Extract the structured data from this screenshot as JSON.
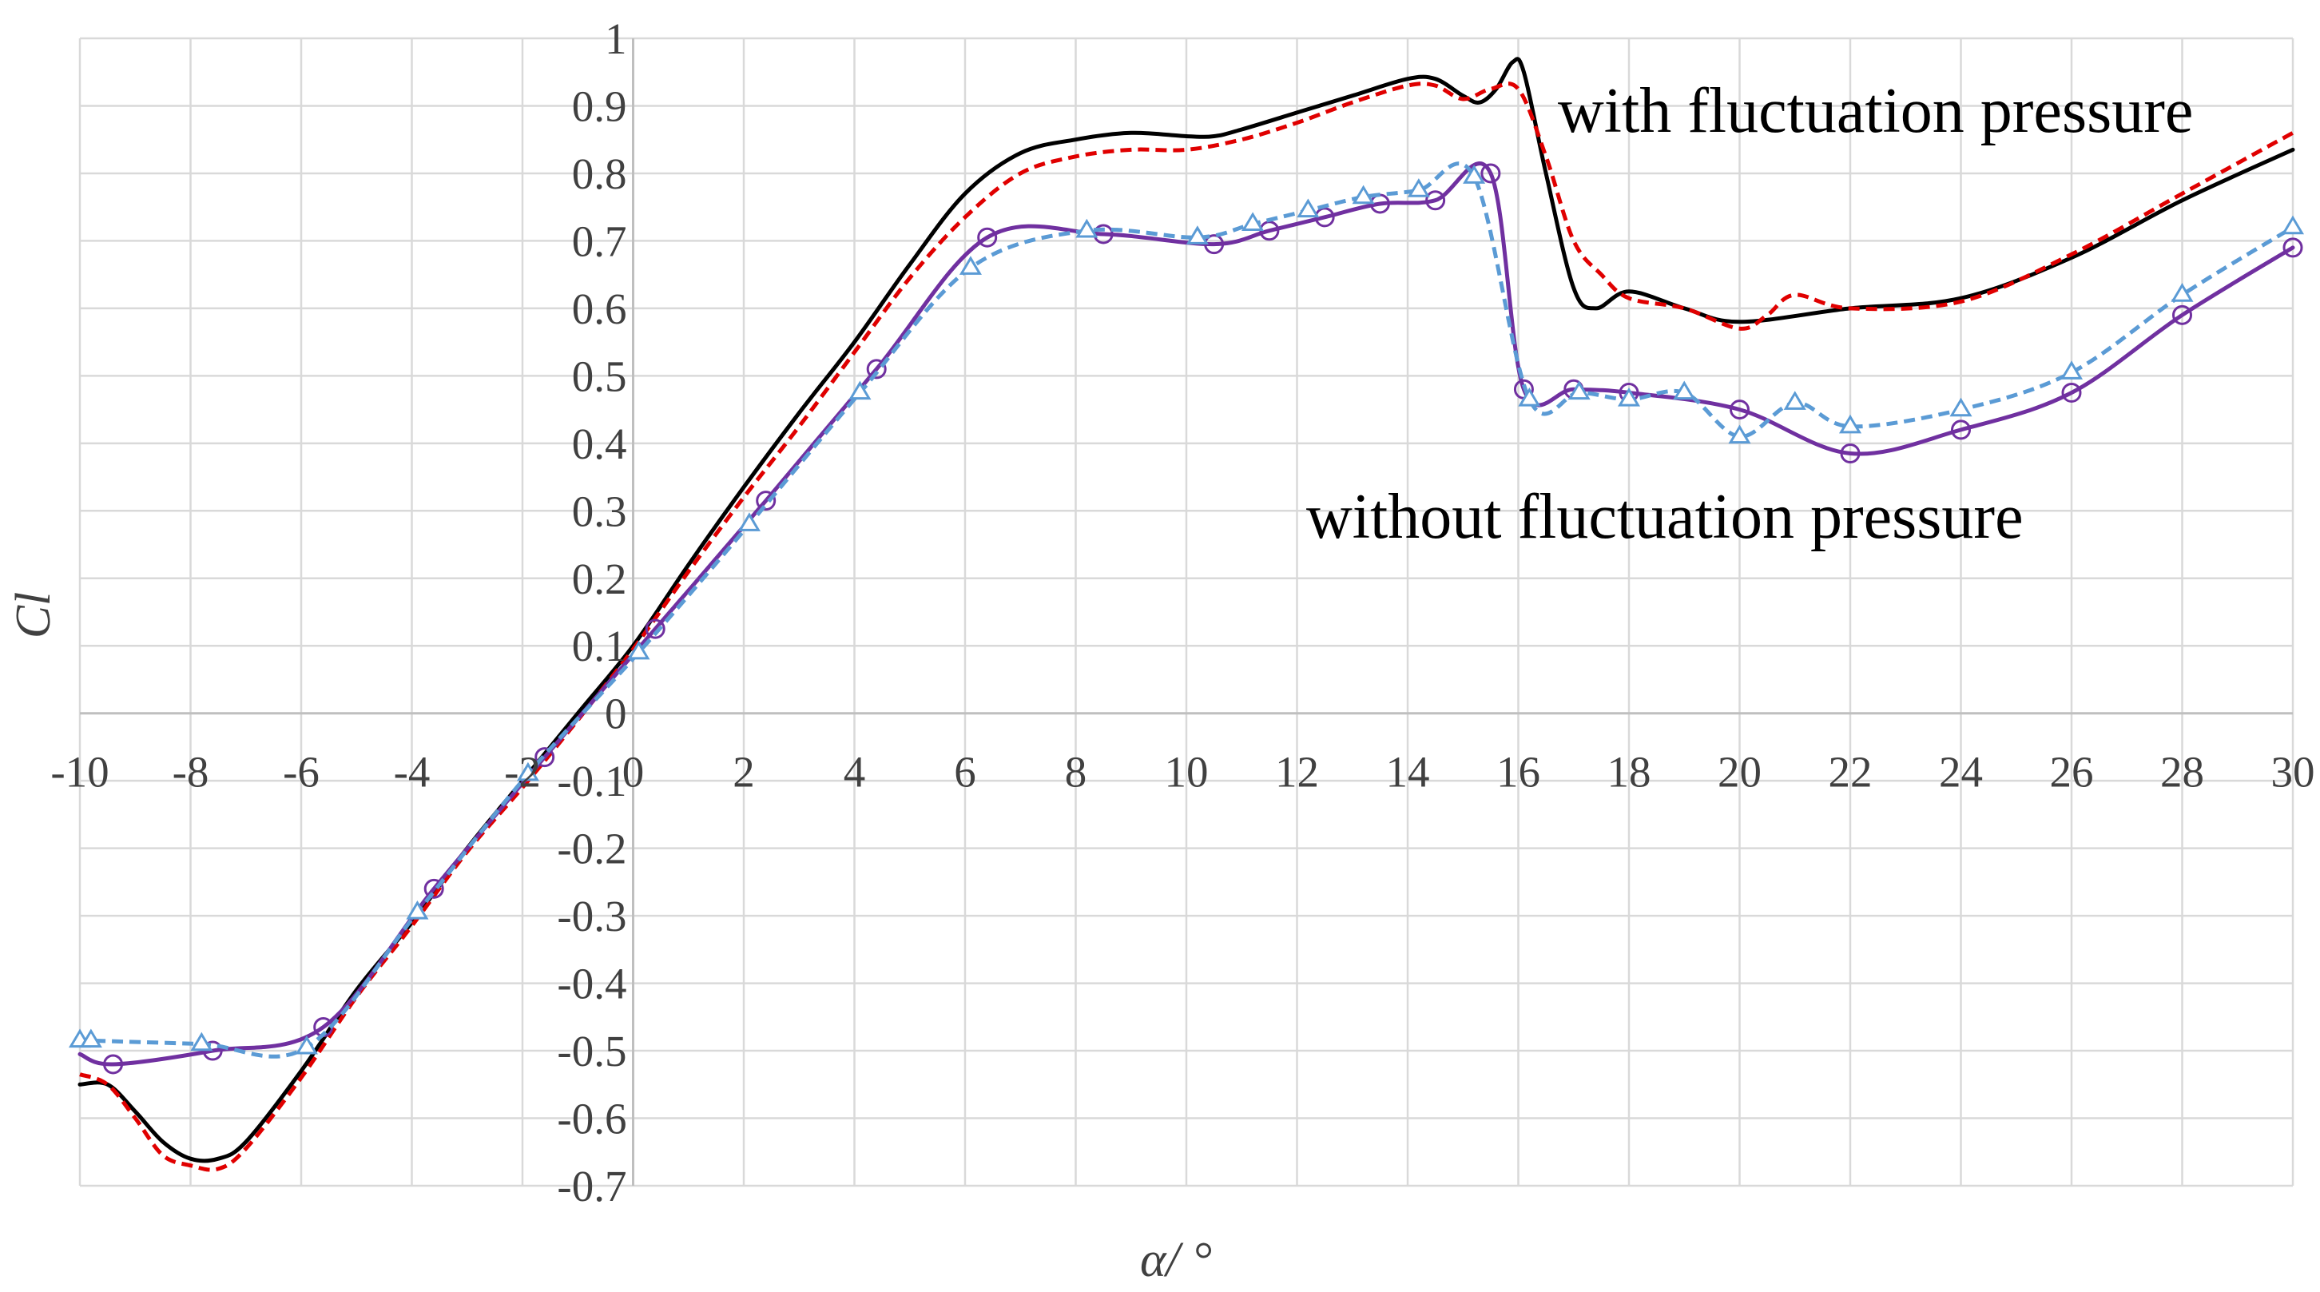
{
  "chart_data": {
    "type": "line",
    "title": "",
    "xlabel": "α/ °",
    "ylabel": "Cl",
    "xlim": [
      -10,
      30
    ],
    "ylim": [
      -0.7,
      1
    ],
    "x_ticks": [
      "-10",
      "-8",
      "-6",
      "-4",
      "-2",
      "0",
      "2",
      "4",
      "6",
      "8",
      "10",
      "12",
      "14",
      "16",
      "18",
      "20",
      "22",
      "24",
      "26",
      "28",
      "30"
    ],
    "y_ticks": [
      "-0.7",
      "-0.6",
      "-0.5",
      "-0.4",
      "-0.3",
      "-0.2",
      "-0.1",
      "0",
      "0.1",
      "0.2",
      "0.3",
      "0.4",
      "0.5",
      "0.6",
      "0.7",
      "0.8",
      "0.9",
      "1"
    ],
    "grid": true,
    "annotations": [
      {
        "text": "with fluctuation pressure",
        "near_series": "black solid & red dashed"
      },
      {
        "text": "without fluctuation pressure",
        "near_series": "purple circles & blue triangles"
      }
    ],
    "series": [
      {
        "color": "#000000",
        "style": "solid",
        "marker": "none",
        "x": [
          -10,
          -9.5,
          -9,
          -8.5,
          -8,
          -7.5,
          -7,
          -6,
          -5,
          -4,
          -3,
          -2,
          -1,
          0,
          1,
          2,
          3,
          4,
          5,
          6,
          7,
          8,
          9,
          10,
          10.5,
          11,
          12,
          13,
          14,
          14.5,
          15,
          15.3,
          15.6,
          15.9,
          16.1,
          16.5,
          17,
          17.4,
          18,
          19,
          20,
          22,
          24,
          26,
          28,
          30
        ],
        "y": [
          -0.55,
          -0.55,
          -0.59,
          -0.635,
          -0.66,
          -0.66,
          -0.635,
          -0.53,
          -0.41,
          -0.31,
          -0.2,
          -0.1,
          0.0,
          0.1,
          0.22,
          0.335,
          0.445,
          0.55,
          0.665,
          0.77,
          0.83,
          0.85,
          0.86,
          0.855,
          0.855,
          0.865,
          0.89,
          0.915,
          0.94,
          0.94,
          0.915,
          0.905,
          0.925,
          0.965,
          0.95,
          0.8,
          0.63,
          0.6,
          0.625,
          0.6,
          0.58,
          0.6,
          0.615,
          0.675,
          0.76,
          0.835
        ]
      },
      {
        "color": "#e00000",
        "style": "dashed",
        "marker": "none",
        "x": [
          -10,
          -9.5,
          -9,
          -8.5,
          -8,
          -7.5,
          -7,
          -6,
          -5,
          -4,
          -3,
          -2,
          -1,
          0,
          1,
          2,
          3,
          4,
          5,
          6,
          7,
          8,
          9,
          10,
          11,
          12,
          13,
          14,
          14.5,
          15,
          15.5,
          16,
          16.5,
          17,
          17.5,
          18,
          19,
          20,
          20.5,
          21,
          22,
          24,
          26,
          28,
          30
        ],
        "y": [
          -0.535,
          -0.55,
          -0.6,
          -0.655,
          -0.67,
          -0.675,
          -0.645,
          -0.54,
          -0.42,
          -0.315,
          -0.205,
          -0.11,
          -0.01,
          0.095,
          0.21,
          0.32,
          0.425,
          0.535,
          0.645,
          0.735,
          0.8,
          0.825,
          0.835,
          0.835,
          0.85,
          0.875,
          0.905,
          0.93,
          0.93,
          0.91,
          0.925,
          0.925,
          0.825,
          0.7,
          0.65,
          0.615,
          0.6,
          0.57,
          0.59,
          0.62,
          0.6,
          0.61,
          0.68,
          0.77,
          0.86
        ]
      },
      {
        "color": "#7030a0",
        "style": "solid",
        "marker": "circle",
        "x": [
          -10,
          -9.4,
          -7.6,
          -5.6,
          -3.6,
          -1.6,
          0.4,
          2.4,
          4.4,
          6.4,
          8.5,
          10.5,
          11.5,
          12.5,
          13.5,
          14.5,
          15.5,
          16.1,
          17,
          18,
          20,
          22,
          24,
          26,
          28,
          30
        ],
        "y": [
          -0.505,
          -0.52,
          -0.5,
          -0.465,
          -0.26,
          -0.065,
          0.125,
          0.315,
          0.51,
          0.705,
          0.71,
          0.695,
          0.715,
          0.735,
          0.755,
          0.76,
          0.8,
          0.48,
          0.48,
          0.475,
          0.45,
          0.385,
          0.42,
          0.475,
          0.59,
          0.69
        ]
      },
      {
        "color": "#5b9bd5",
        "style": "dashed",
        "marker": "triangle",
        "x": [
          -10,
          -9.8,
          -7.8,
          -5.9,
          -3.9,
          -1.9,
          0.1,
          2.1,
          4.1,
          6.1,
          8.2,
          10.2,
          11.2,
          12.2,
          13.2,
          14.2,
          15.2,
          16.2,
          17.1,
          18,
          19,
          20,
          21,
          22,
          24,
          26,
          28,
          30
        ],
        "y": [
          -0.485,
          -0.485,
          -0.49,
          -0.495,
          -0.295,
          -0.09,
          0.09,
          0.28,
          0.475,
          0.66,
          0.715,
          0.705,
          0.725,
          0.745,
          0.765,
          0.775,
          0.795,
          0.465,
          0.475,
          0.465,
          0.475,
          0.41,
          0.46,
          0.425,
          0.45,
          0.505,
          0.62,
          0.72
        ]
      }
    ]
  }
}
